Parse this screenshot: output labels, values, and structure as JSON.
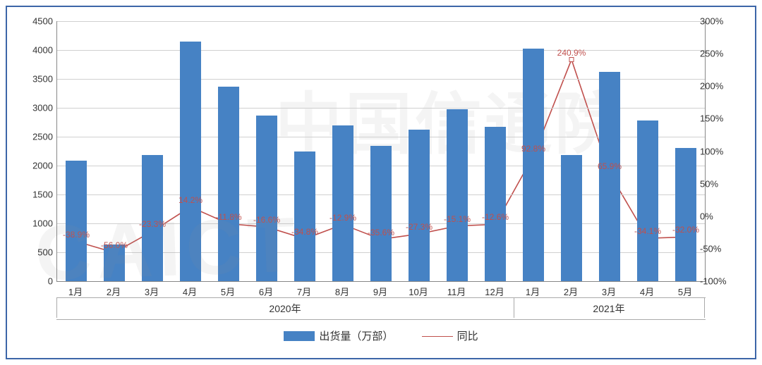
{
  "chart": {
    "type": "bar-line-dual-axis",
    "border_color": "#3c66a8",
    "plot_border_color": "#888888",
    "grid_color": "#d0d0d0",
    "background_color": "#ffffff",
    "label_fontsize": 13,
    "title_fontsize": 15,
    "bar_color": "#4682c4",
    "line_color": "#c0504d",
    "bar_width_ratio": 0.55,
    "y_left": {
      "min": 0,
      "max": 4500,
      "step": 500,
      "unit": ""
    },
    "y_right": {
      "min": -100,
      "max": 300,
      "step": 50,
      "unit": "%"
    },
    "categories": [
      "1月",
      "2月",
      "3月",
      "4月",
      "5月",
      "6月",
      "7月",
      "8月",
      "9月",
      "10月",
      "11月",
      "12月",
      "1月",
      "2月",
      "3月",
      "4月",
      "5月"
    ],
    "year_groups": [
      {
        "label": "2020年",
        "start": 0,
        "end": 11
      },
      {
        "label": "2021年",
        "start": 12,
        "end": 16
      }
    ],
    "bar_values": [
      2080,
      630,
      2180,
      4150,
      3360,
      2870,
      2250,
      2690,
      2340,
      2620,
      2970,
      2670,
      4020,
      2180,
      3620,
      2780,
      2310
    ],
    "line_values": [
      -38.9,
      -56.0,
      -23.3,
      14.2,
      -11.8,
      -16.6,
      -34.8,
      -12.9,
      -35.6,
      -27.3,
      -15.1,
      -12.6,
      92.8,
      240.9,
      65.9,
      -34.1,
      -32.0
    ],
    "line_labels": [
      "-38.9%",
      "-56.0%",
      "-23.3%",
      "14.2%",
      "-11.8%",
      "-16.6%",
      "-34.8%",
      "-12.9%",
      "-35.6%",
      "-27.3%",
      "-15.1%",
      "-12.6%",
      "92.8%",
      "240.9%",
      "65.9%",
      "-34.1%",
      "-32.0%"
    ],
    "legend": {
      "bar_label": "出货量（万部）",
      "line_label": "同比"
    }
  },
  "watermark": {
    "en": "CAICT",
    "zh": "中国信通院"
  }
}
